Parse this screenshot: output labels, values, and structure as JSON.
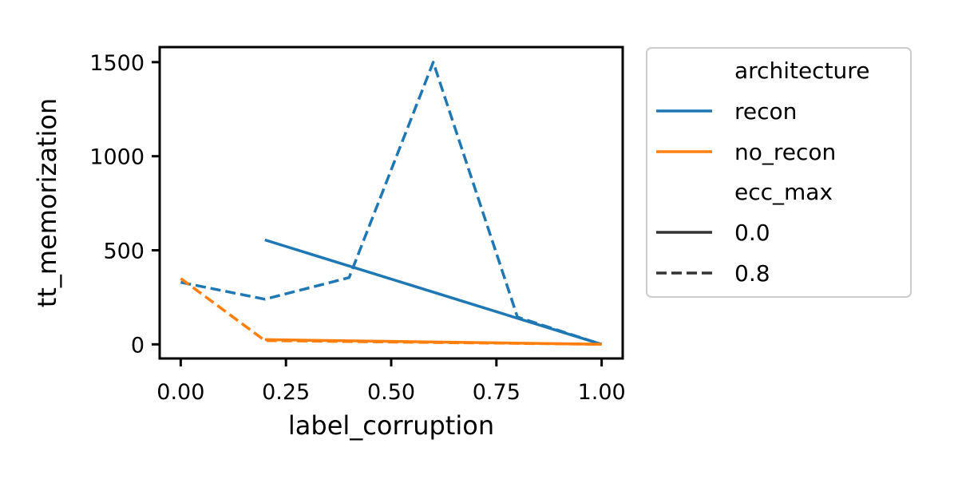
{
  "chart_data": {
    "type": "line",
    "xlabel": "label_corruption",
    "ylabel": "tt_memorization",
    "xlim": [
      -0.05,
      1.05
    ],
    "ylim": [
      -75,
      1580
    ],
    "xticks": [
      0.0,
      0.25,
      0.5,
      0.75,
      1.0
    ],
    "xtick_labels": [
      "0.00",
      "0.25",
      "0.50",
      "0.75",
      "1.00"
    ],
    "yticks": [
      0,
      500,
      1000,
      1500
    ],
    "ytick_labels": [
      "0",
      "500",
      "1000",
      "1500"
    ],
    "grid": false,
    "legend": {
      "placement": "outside-right-top",
      "hue_title": "architecture",
      "style_title": "ecc_max",
      "entries": [
        {
          "label": "recon",
          "color": "#1f77b4",
          "dash": "solid"
        },
        {
          "label": "no_recon",
          "color": "#ff7f0e",
          "dash": "solid"
        },
        {
          "label": "0.0",
          "color": "#333333",
          "dash": "solid"
        },
        {
          "label": "0.8",
          "color": "#333333",
          "dash": "dashed"
        }
      ]
    },
    "series": [
      {
        "architecture": "recon",
        "ecc_max": "0.0",
        "color": "#1f77b4",
        "dash": "solid",
        "x": [
          0.2,
          1.0
        ],
        "y": [
          555,
          0
        ]
      },
      {
        "architecture": "recon",
        "ecc_max": "0.8",
        "color": "#1f77b4",
        "dash": "dashed",
        "x": [
          0.0,
          0.2,
          0.4,
          0.6,
          0.8,
          1.0
        ],
        "y": [
          330,
          240,
          355,
          1500,
          145,
          0
        ]
      },
      {
        "architecture": "no_recon",
        "ecc_max": "0.0",
        "color": "#ff7f0e",
        "dash": "solid",
        "x": [
          0.2,
          1.0
        ],
        "y": [
          25,
          0
        ]
      },
      {
        "architecture": "no_recon",
        "ecc_max": "0.8",
        "color": "#ff7f0e",
        "dash": "dashed",
        "x": [
          0.0,
          0.2,
          0.4,
          0.6,
          0.8,
          1.0
        ],
        "y": [
          350,
          20,
          15,
          10,
          5,
          0
        ]
      }
    ]
  }
}
